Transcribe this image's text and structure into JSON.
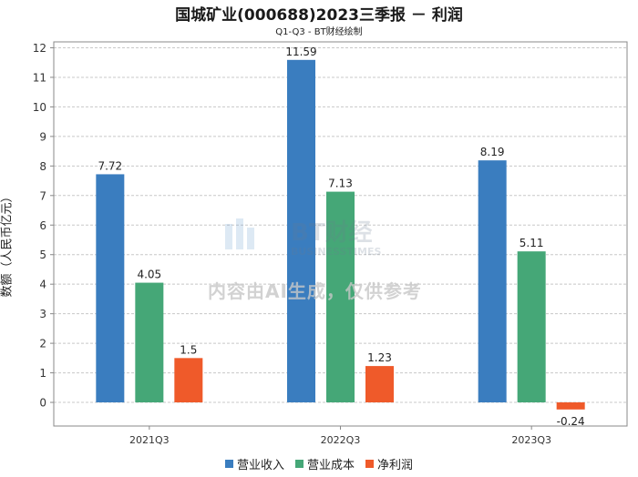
{
  "chart_data": {
    "type": "bar",
    "title": "国城矿业(000688)2023三季报 － 利润",
    "subtitle": "Q1-Q3 - BT财经绘制",
    "xlabel": "",
    "ylabel": "数额（人民币亿元）",
    "ylim": [
      -0.8,
      12.2
    ],
    "yticks": [
      0,
      1,
      2,
      3,
      4,
      5,
      6,
      7,
      8,
      9,
      10,
      11,
      12
    ],
    "categories": [
      "2021Q3",
      "2022Q3",
      "2023Q3"
    ],
    "series": [
      {
        "name": "营业收入",
        "color": "#3a7dbf",
        "values": [
          7.72,
          11.59,
          8.19
        ],
        "labels": [
          "7.72",
          "11.59",
          "8.19"
        ]
      },
      {
        "name": "营业成本",
        "color": "#45a777",
        "values": [
          4.05,
          7.13,
          5.11
        ],
        "labels": [
          "4.05",
          "7.13",
          "5.11"
        ]
      },
      {
        "name": "净利润",
        "color": "#ef5a2a",
        "values": [
          1.5,
          1.23,
          -0.24
        ],
        "labels": [
          "1.5",
          "1.23",
          "-0.24"
        ]
      }
    ],
    "grid": true,
    "legend_position": "bottom"
  },
  "watermark": {
    "logo_text": "BT财经",
    "logo_sub": "BUSINESSTIMES",
    "notice": "内容由AI生成，仅供参考"
  }
}
